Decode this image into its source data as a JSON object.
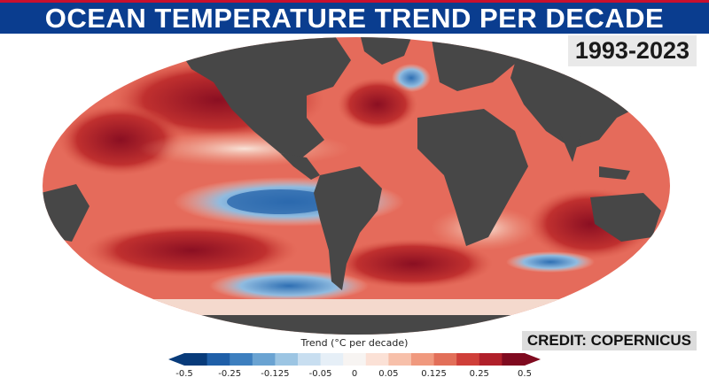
{
  "title": "OCEAN TEMPERATURE TREND PER DECADE",
  "period": "1993-2023",
  "credit": "CREDIT: COPERNICUS",
  "colors": {
    "banner_bg": "#0a3d8f",
    "banner_stripe": "#c8102e",
    "land": "#474747",
    "ocean_base": "#e56b5b"
  },
  "legend": {
    "title": "Trend (°C per decade)",
    "swatches": [
      "#083b7a",
      "#1f5fa8",
      "#3d7fbf",
      "#6aa3d2",
      "#9cc5e3",
      "#c8def0",
      "#e6eff7",
      "#f7f4f2",
      "#fbe1d6",
      "#f7c0aa",
      "#f0997e",
      "#e26f59",
      "#cf3f39",
      "#b0202a",
      "#7f0a1f"
    ],
    "ticks": [
      "-0.5",
      "-0.25",
      "-0.125",
      "-0.05",
      "0",
      "0.05",
      "0.125",
      "0.25",
      "0.5"
    ]
  }
}
